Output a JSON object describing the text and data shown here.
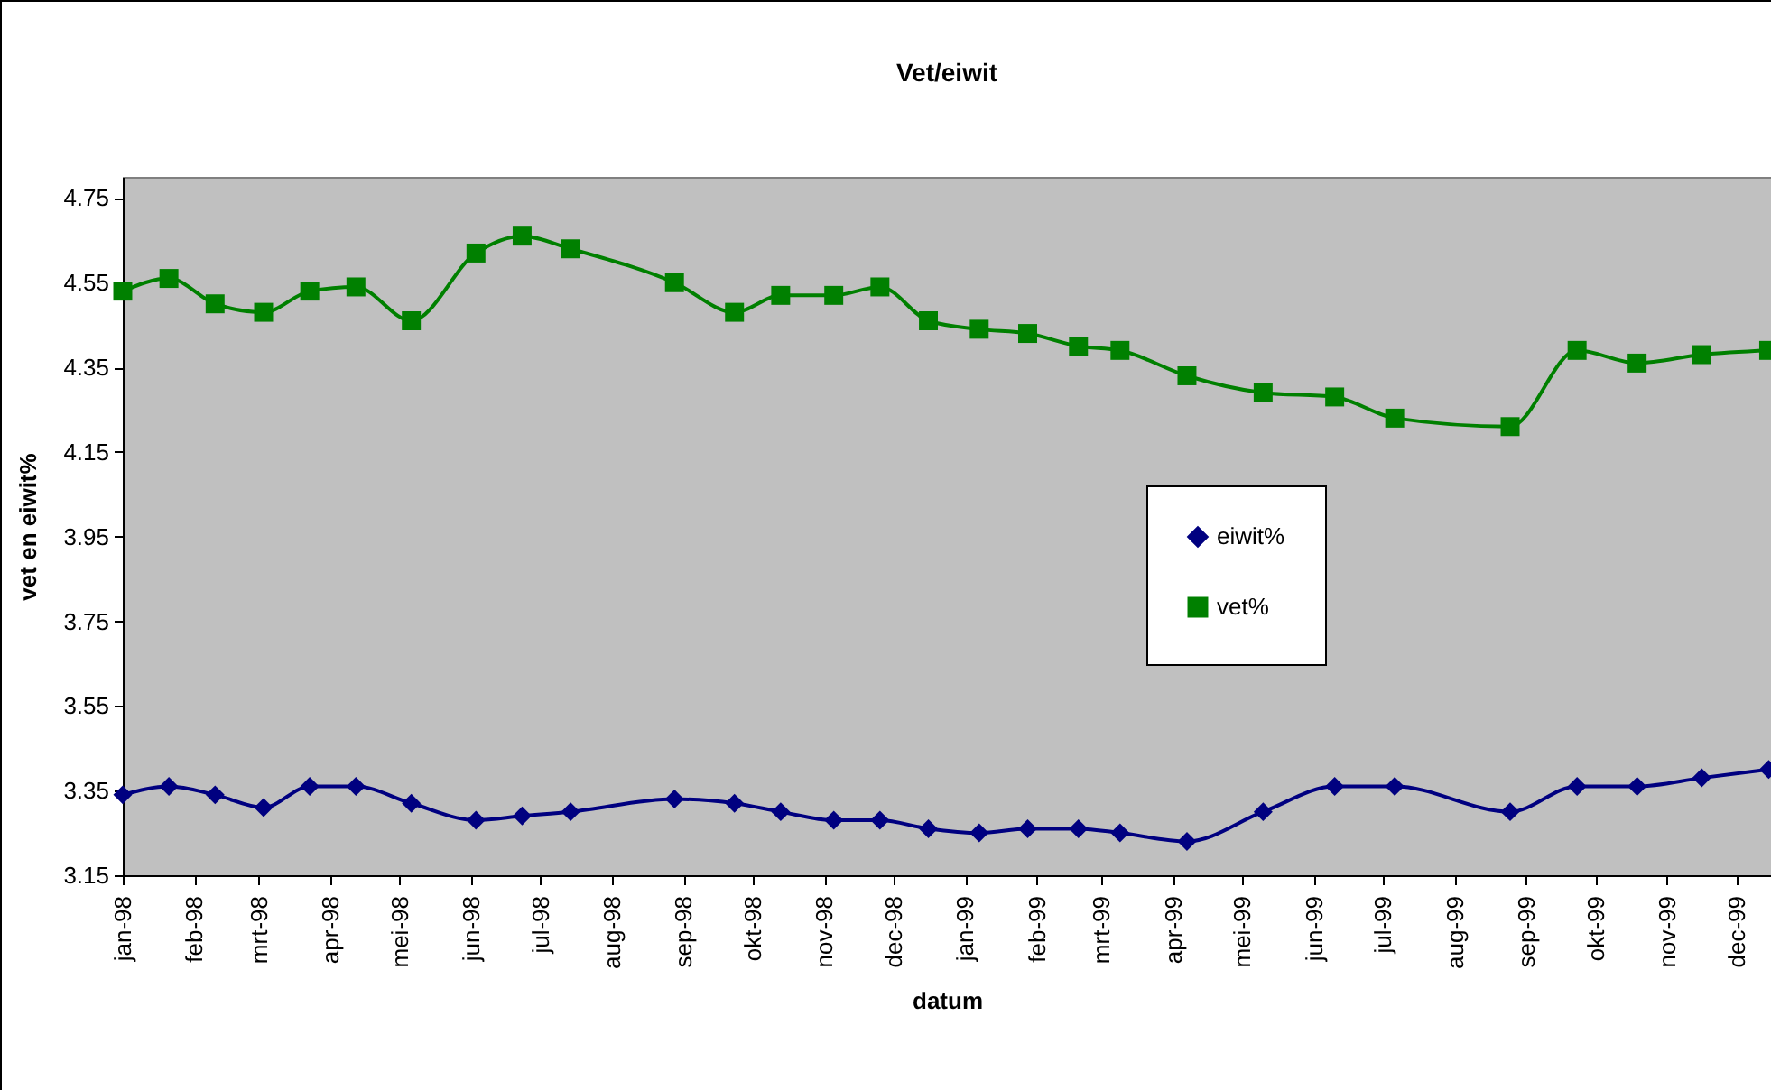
{
  "chart_data": {
    "type": "line",
    "title": "Vet/eiwit",
    "xlabel": "datum",
    "ylabel": "vet en eiwit%",
    "x": [
      "1998-01-01",
      "1998-01-21",
      "1998-02-10",
      "1998-03-03",
      "1998-03-23",
      "1998-04-12",
      "1998-05-06",
      "1998-06-03",
      "1998-06-23",
      "1998-07-14",
      "1998-08-28",
      "1998-09-23",
      "1998-10-13",
      "1998-11-05",
      "1998-11-25",
      "1998-12-16",
      "1999-01-07",
      "1999-01-28",
      "1999-02-19",
      "1999-03-09",
      "1999-04-07",
      "1999-05-10",
      "1999-06-10",
      "1999-07-06",
      "1999-08-25",
      "1999-09-23",
      "1999-10-19",
      "1999-11-16",
      "1999-12-15"
    ],
    "series": [
      {
        "name": "eiwit%",
        "color": "#000080",
        "marker": "diamond",
        "values": [
          3.34,
          3.36,
          3.34,
          3.31,
          3.36,
          3.36,
          3.32,
          3.28,
          3.29,
          3.3,
          3.33,
          3.32,
          3.3,
          3.28,
          3.28,
          3.26,
          3.25,
          3.26,
          3.26,
          3.25,
          3.23,
          3.3,
          3.36,
          3.36,
          3.3,
          3.36,
          3.36,
          3.38,
          3.4
        ]
      },
      {
        "name": "vet%",
        "color": "#008000",
        "marker": "square",
        "values": [
          4.53,
          4.56,
          4.5,
          4.48,
          4.53,
          4.54,
          4.46,
          4.62,
          4.66,
          4.63,
          4.55,
          4.48,
          4.52,
          4.52,
          4.54,
          4.46,
          4.44,
          4.43,
          4.4,
          4.39,
          4.33,
          4.29,
          4.28,
          4.23,
          4.21,
          4.39,
          4.36,
          4.38,
          4.39
        ]
      }
    ],
    "xlim": [
      "1998-01-01",
      "1999-12-16"
    ],
    "xticks": [
      {
        "value": "1998-01-01",
        "label": "jan-98"
      },
      {
        "value": "1998-02-01",
        "label": "feb-98"
      },
      {
        "value": "1998-03-01",
        "label": "mrt-98"
      },
      {
        "value": "1998-04-01",
        "label": "apr-98"
      },
      {
        "value": "1998-05-01",
        "label": "mei-98"
      },
      {
        "value": "1998-06-01",
        "label": "jun-98"
      },
      {
        "value": "1998-07-01",
        "label": "jul-98"
      },
      {
        "value": "1998-08-01",
        "label": "aug-98"
      },
      {
        "value": "1998-09-01",
        "label": "sep-98"
      },
      {
        "value": "1998-10-01",
        "label": "okt-98"
      },
      {
        "value": "1998-11-01",
        "label": "nov-98"
      },
      {
        "value": "1998-12-01",
        "label": "dec-98"
      },
      {
        "value": "1999-01-01",
        "label": "jan-99"
      },
      {
        "value": "1999-02-01",
        "label": "feb-99"
      },
      {
        "value": "1999-03-01",
        "label": "mrt-99"
      },
      {
        "value": "1999-04-01",
        "label": "apr-99"
      },
      {
        "value": "1999-05-01",
        "label": "mei-99"
      },
      {
        "value": "1999-06-01",
        "label": "jun-99"
      },
      {
        "value": "1999-07-01",
        "label": "jul-99"
      },
      {
        "value": "1999-08-01",
        "label": "aug-99"
      },
      {
        "value": "1999-09-01",
        "label": "sep-99"
      },
      {
        "value": "1999-10-01",
        "label": "okt-99"
      },
      {
        "value": "1999-11-01",
        "label": "nov-99"
      },
      {
        "value": "1999-12-01",
        "label": "dec-99"
      }
    ],
    "ylim": [
      3.15,
      4.8
    ],
    "yticks": [
      3.15,
      3.35,
      3.55,
      3.75,
      3.95,
      4.15,
      4.35,
      4.55,
      4.75
    ],
    "grid": false,
    "legend": "right",
    "line_style": "solid"
  }
}
